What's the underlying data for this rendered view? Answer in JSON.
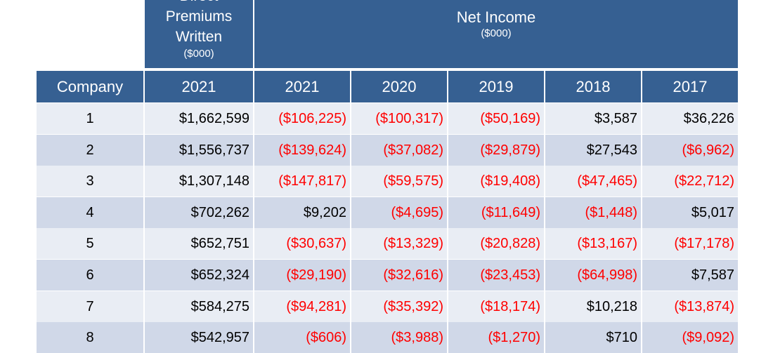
{
  "header": {
    "premiums_lines": [
      "Direct",
      "Premiums",
      "Written"
    ],
    "premiums_unit": "($000)",
    "net_income": "Net Income",
    "net_income_unit": "($000)",
    "columns": [
      "Company",
      "2021",
      "2021",
      "2020",
      "2019",
      "2018",
      "2017"
    ]
  },
  "colors": {
    "header_bg": "#366092",
    "row_light": "#e9edf4",
    "row_dark": "#d0d8e8",
    "negative": "#ff0000"
  },
  "rows": [
    [
      "1",
      "$1,662,599",
      "($106,225)",
      "($100,317)",
      "($50,169)",
      "$3,587",
      "$36,226"
    ],
    [
      "2",
      "$1,556,737",
      "($139,624)",
      "($37,082)",
      "($29,879)",
      "$27,543",
      "($6,962)"
    ],
    [
      "3",
      "$1,307,148",
      "($147,817)",
      "($59,575)",
      "($19,408)",
      "($47,465)",
      "($22,712)"
    ],
    [
      "4",
      "$702,262",
      "$9,202",
      "($4,695)",
      "($11,649)",
      "($1,448)",
      "$5,017"
    ],
    [
      "5",
      "$652,751",
      "($30,637)",
      "($13,329)",
      "($20,828)",
      "($13,167)",
      "($17,178)"
    ],
    [
      "6",
      "$652,324",
      "($29,190)",
      "($32,616)",
      "($23,453)",
      "($64,998)",
      "$7,587"
    ],
    [
      "7",
      "$584,275",
      "($94,281)",
      "($35,392)",
      "($18,174)",
      "$10,218",
      "($13,874)"
    ],
    [
      "8",
      "$542,957",
      "($606)",
      "($3,988)",
      "($1,270)",
      "$710",
      "($9,092)"
    ]
  ]
}
